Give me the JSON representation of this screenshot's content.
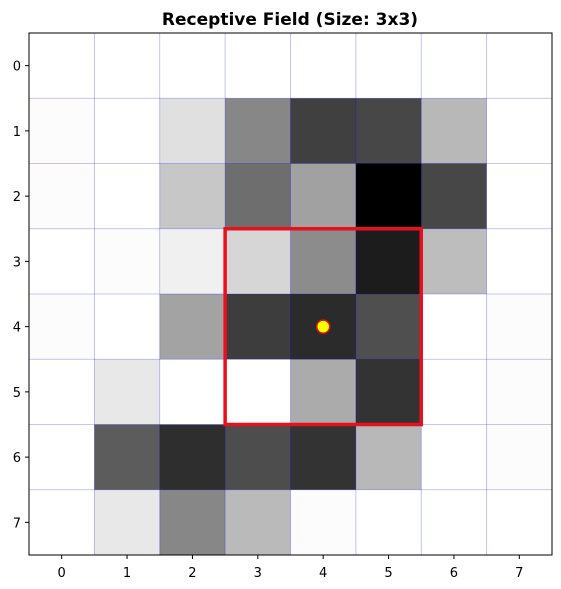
{
  "chart_data": {
    "type": "heatmap",
    "title": "Receptive Field (Size: 3x3)",
    "xlabel": "",
    "ylabel": "",
    "colormap": "gray_r",
    "value_range": [
      0,
      1
    ],
    "x_ticks": [
      "0",
      "1",
      "2",
      "3",
      "4",
      "5",
      "6",
      "7"
    ],
    "y_ticks": [
      "0",
      "1",
      "2",
      "3",
      "4",
      "5",
      "6",
      "7"
    ],
    "values": [
      [
        0.0,
        0.0,
        0.0,
        0.0,
        0.0,
        0.0,
        0.0,
        0.0
      ],
      [
        0.01,
        0.0,
        0.12,
        0.47,
        0.75,
        0.72,
        0.28,
        0.0
      ],
      [
        0.01,
        0.0,
        0.22,
        0.57,
        0.37,
        1.0,
        0.72,
        0.0
      ],
      [
        0.0,
        0.01,
        0.06,
        0.16,
        0.45,
        0.89,
        0.26,
        0.0
      ],
      [
        0.01,
        0.0,
        0.36,
        0.76,
        0.83,
        0.69,
        0.0,
        0.01
      ],
      [
        0.0,
        0.09,
        0.0,
        0.0,
        0.33,
        0.8,
        0.0,
        0.01
      ],
      [
        0.0,
        0.64,
        0.82,
        0.7,
        0.8,
        0.28,
        0.0,
        0.01
      ],
      [
        0.0,
        0.09,
        0.47,
        0.27,
        0.01,
        0.0,
        0.0,
        0.0
      ]
    ],
    "receptive_field": {
      "size": 3,
      "row_start": 3,
      "row_end": 5,
      "col_start": 3,
      "col_end": 5,
      "color": "#e8101c"
    },
    "center_marker": {
      "x": 4,
      "y": 4,
      "fill": "#ffff00",
      "edge": "#e8101c"
    },
    "grid": true,
    "grid_color": "#0000ff"
  }
}
